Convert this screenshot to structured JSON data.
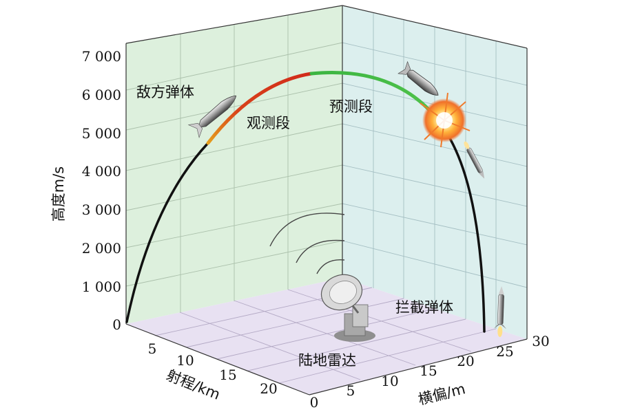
{
  "y_axis": {
    "title": "高度m/s",
    "ticks": [
      "0",
      "1 000",
      "2 000",
      "3 000",
      "4 000",
      "5 000",
      "6 000",
      "7 000"
    ]
  },
  "range_axis": {
    "title": "射程/km",
    "ticks": [
      "5",
      "10",
      "15",
      "20"
    ]
  },
  "cross_axis": {
    "title": "横偏/m",
    "ticks": [
      "0",
      "5",
      "10",
      "15",
      "20",
      "25",
      "30"
    ]
  },
  "labels": {
    "enemy_warhead": "敌方弹体",
    "observation_segment": "观测段",
    "prediction_segment": "预测段",
    "interceptor": "拦截弹体",
    "ground_radar": "陆地雷达"
  },
  "colors": {
    "back_wall": "#ddf0dd",
    "right_wall": "#dcefee",
    "floor": "#e8e1f2",
    "trajectory": "#111111",
    "observation": "#d84a1c",
    "prediction": "#2fae3a"
  }
}
